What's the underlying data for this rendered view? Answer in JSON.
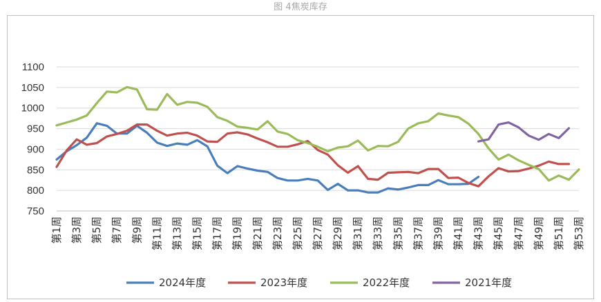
{
  "figure_title": "图 4焦炭库存",
  "colors": {
    "2024": "#4a7ebb",
    "2023": "#c0504d",
    "2022": "#9bbb59",
    "2021": "#8064a2",
    "grid": "#d9d9d9",
    "axis": "#bfbfbf"
  },
  "chart_data": {
    "type": "line",
    "title": "图 4焦炭库存",
    "xlabel": "",
    "ylabel": "",
    "ylim": [
      750,
      1100
    ],
    "yticks": [
      750,
      800,
      850,
      900,
      950,
      1000,
      1050,
      1100
    ],
    "x_tick_labels": [
      "第1周",
      "第3周",
      "第5周",
      "第7周",
      "第9周",
      "第11周",
      "第13周",
      "第15周",
      "第17周",
      "第19周",
      "第21周",
      "第23周",
      "第25周",
      "第27周",
      "第29周",
      "第31周",
      "第33周",
      "第35周",
      "第37周",
      "第39周",
      "第41周",
      "第43周",
      "第45周",
      "第47周",
      "第49周",
      "第51周",
      "第53周"
    ],
    "x_tick_weeks": [
      1,
      3,
      5,
      7,
      9,
      11,
      13,
      15,
      17,
      19,
      21,
      23,
      25,
      27,
      29,
      31,
      33,
      35,
      37,
      39,
      41,
      43,
      45,
      47,
      49,
      51,
      53
    ],
    "grid": true,
    "legend_position": "bottom",
    "series": [
      {
        "name": "2024年度",
        "color_key": "2024",
        "start_week": 1,
        "values": [
          875,
          895,
          910,
          928,
          963,
          957,
          938,
          938,
          957,
          940,
          916,
          908,
          914,
          911,
          922,
          907,
          860,
          842,
          859,
          853,
          848,
          845,
          830,
          824,
          824,
          828,
          824,
          801,
          816,
          800,
          800,
          795,
          795,
          805,
          802,
          807,
          813,
          813,
          825,
          815,
          815,
          816,
          833
        ]
      },
      {
        "name": "2023年度",
        "color_key": "2023",
        "start_week": 1,
        "values": [
          857,
          897,
          924,
          911,
          915,
          931,
          937,
          945,
          960,
          960,
          945,
          933,
          938,
          940,
          933,
          919,
          918,
          938,
          941,
          936,
          926,
          917,
          906,
          906,
          912,
          920,
          898,
          887,
          861,
          843,
          859,
          828,
          826,
          843,
          844,
          845,
          842,
          852,
          852,
          830,
          831,
          818,
          810,
          834,
          854,
          846,
          847,
          853,
          860,
          870,
          864,
          864
        ]
      },
      {
        "name": "2022年度",
        "color_key": "2022",
        "start_week": 1,
        "values": [
          958,
          965,
          972,
          982,
          1012,
          1040,
          1038,
          1051,
          1045,
          997,
          996,
          1034,
          1008,
          1015,
          1013,
          1003,
          978,
          969,
          955,
          952,
          948,
          968,
          943,
          937,
          922,
          915,
          906,
          895,
          904,
          907,
          921,
          897,
          908,
          907,
          918,
          950,
          963,
          968,
          987,
          982,
          978,
          962,
          937,
          902,
          875,
          887,
          873,
          862,
          852,
          824,
          836,
          826,
          851
        ]
      },
      {
        "name": "2021年度",
        "color_key": "2021",
        "start_week": 43,
        "values": [
          919,
          924,
          960,
          965,
          953,
          933,
          923,
          937,
          927,
          951
        ]
      }
    ]
  }
}
